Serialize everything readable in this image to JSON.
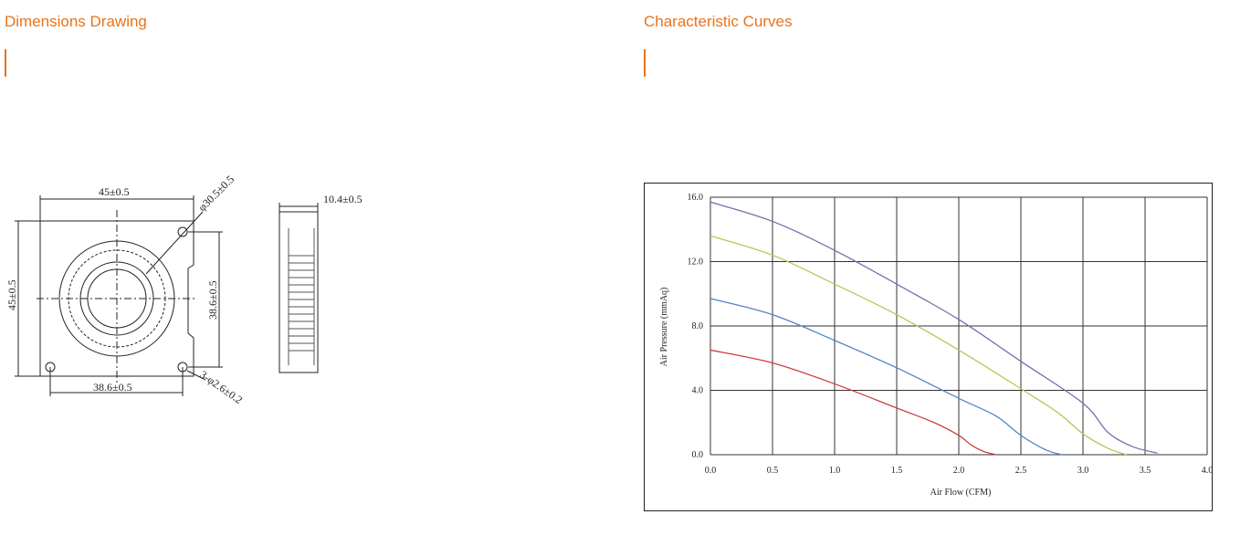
{
  "sections": {
    "left_title": "Dimensions Drawing",
    "right_title": "Characteristic Curves"
  },
  "dimensions": {
    "width_top": "45±0.5",
    "diameter": "φ30.5±0.5",
    "height_left": "45±0.5",
    "hole_spacing_v": "38.6±0.5",
    "hole_spacing_h": "38.6±0.5",
    "holes": "3-φ2.6±0.2",
    "thickness": "10.4±0.5"
  },
  "chart_data": {
    "type": "line",
    "xlabel": "Air Flow (CFM)",
    "ylabel": "Air Pressure (mmAq)",
    "xlim": [
      0,
      4.0
    ],
    "ylim": [
      0,
      16.0
    ],
    "x_ticks": [
      "0.0",
      "0.5",
      "1.0",
      "1.5",
      "2.0",
      "2.5",
      "3.0",
      "3.5",
      "4.0"
    ],
    "y_ticks": [
      "0.0",
      "4.0",
      "8.0",
      "12.0",
      "16.0"
    ],
    "grid": true,
    "series": [
      {
        "color": "#7b6bab",
        "points": [
          [
            0,
            15.7
          ],
          [
            0.5,
            14.5
          ],
          [
            1.0,
            12.7
          ],
          [
            1.5,
            10.6
          ],
          [
            2.0,
            8.4
          ],
          [
            2.5,
            5.8
          ],
          [
            3.0,
            3.2
          ],
          [
            3.2,
            1.4
          ],
          [
            3.4,
            0.5
          ],
          [
            3.6,
            0.1
          ]
        ]
      },
      {
        "color": "#b5c856",
        "points": [
          [
            0,
            13.6
          ],
          [
            0.5,
            12.4
          ],
          [
            1.0,
            10.6
          ],
          [
            1.5,
            8.7
          ],
          [
            2.0,
            6.5
          ],
          [
            2.5,
            4.1
          ],
          [
            2.8,
            2.6
          ],
          [
            3.0,
            1.3
          ],
          [
            3.2,
            0.4
          ],
          [
            3.35,
            0.0
          ]
        ]
      },
      {
        "color": "#4f86c6",
        "points": [
          [
            0,
            9.7
          ],
          [
            0.5,
            8.7
          ],
          [
            1.0,
            7.1
          ],
          [
            1.5,
            5.4
          ],
          [
            2.0,
            3.5
          ],
          [
            2.3,
            2.4
          ],
          [
            2.5,
            1.2
          ],
          [
            2.7,
            0.3
          ],
          [
            2.83,
            0.0
          ]
        ]
      },
      {
        "color": "#cc3f3f",
        "points": [
          [
            0,
            6.5
          ],
          [
            0.5,
            5.7
          ],
          [
            1.0,
            4.4
          ],
          [
            1.5,
            2.9
          ],
          [
            1.8,
            2.0
          ],
          [
            2.0,
            1.2
          ],
          [
            2.1,
            0.6
          ],
          [
            2.2,
            0.2
          ],
          [
            2.3,
            0.0
          ]
        ]
      }
    ]
  }
}
